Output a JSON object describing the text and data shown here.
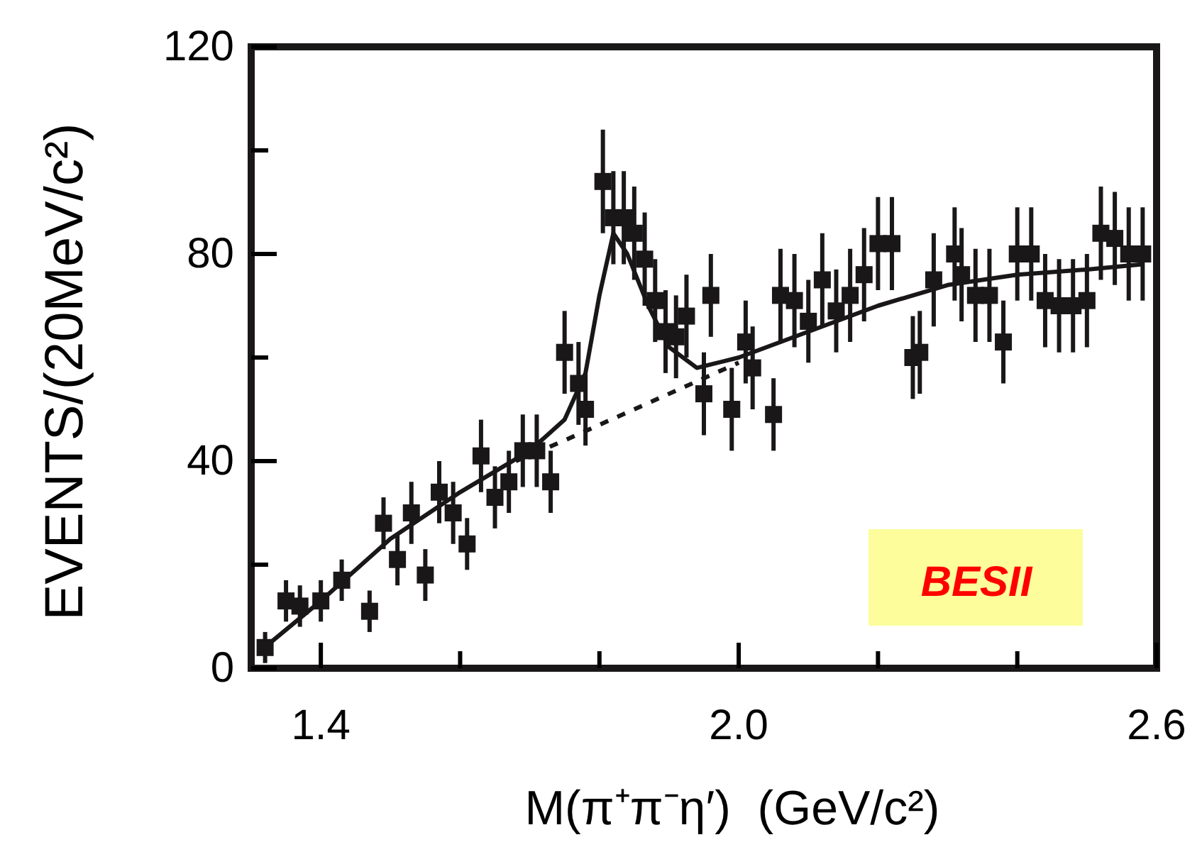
{
  "chart_data": {
    "type": "scatter",
    "xlabel": "M(π⁺π⁻η′)  (GeV/c²)",
    "ylabel": "EVENTS/(20MeV/c²)",
    "annotations": [
      "BESII"
    ],
    "xlim": [
      1.3,
      2.6
    ],
    "ylim": [
      0,
      120
    ],
    "xticks": [
      1.4,
      {
        "value": 1.6,
        "label": null
      },
      {
        "value": 1.8,
        "label": null
      },
      {
        "value": 2.0,
        "label": "2.0"
      },
      {
        "value": 2.2,
        "label": null
      },
      {
        "value": 2.4,
        "label": null
      },
      2.6
    ],
    "yticks": [
      0,
      {
        "value": 20,
        "label": null
      },
      40,
      {
        "value": 60,
        "label": null
      },
      80,
      {
        "value": 100,
        "label": null
      },
      120
    ],
    "grid": false,
    "series": [
      {
        "color": "#1a1718",
        "marker": "square",
        "x": [
          1.32,
          1.35,
          1.37,
          1.4,
          1.43,
          1.47,
          1.49,
          1.51,
          1.53,
          1.55,
          1.57,
          1.59,
          1.61,
          1.63,
          1.65,
          1.67,
          1.69,
          1.71,
          1.73,
          1.75,
          1.77,
          1.78,
          1.805,
          1.82,
          1.835,
          1.85,
          1.865,
          1.88,
          1.895,
          1.91,
          1.925,
          1.95,
          1.96,
          1.99,
          2.01,
          2.02,
          2.05,
          2.06,
          2.08,
          2.1,
          2.12,
          2.14,
          2.16,
          2.18,
          2.2,
          2.22,
          2.25,
          2.26,
          2.28,
          2.31,
          2.32,
          2.34,
          2.36,
          2.38,
          2.4,
          2.42,
          2.44,
          2.46,
          2.48,
          2.5,
          2.52,
          2.54,
          2.56,
          2.58
        ],
        "values": [
          4,
          13,
          12,
          13,
          17,
          11,
          28,
          21,
          30,
          18,
          34,
          30,
          24,
          41,
          33,
          36,
          42,
          42,
          36,
          61,
          55,
          50,
          94,
          87,
          87,
          84,
          79,
          71,
          65,
          64,
          68,
          53,
          72,
          50,
          63,
          58,
          49,
          72,
          71,
          67,
          75,
          69,
          72,
          76,
          82,
          82,
          60,
          61,
          75,
          80,
          76,
          72,
          72,
          63,
          80,
          80,
          71,
          70,
          70,
          71,
          84,
          83,
          80,
          80
        ],
        "errors": [
          3,
          4,
          4,
          4,
          4,
          4,
          5,
          5,
          6,
          5,
          6,
          6,
          5,
          7,
          6,
          6,
          7,
          7,
          6,
          8,
          8,
          7,
          10,
          9,
          9,
          9,
          9,
          8,
          8,
          8,
          8,
          8,
          8,
          8,
          8,
          8,
          7,
          9,
          9,
          8,
          9,
          8,
          9,
          9,
          9,
          9,
          8,
          8,
          9,
          9,
          9,
          9,
          9,
          8,
          9,
          9,
          9,
          9,
          9,
          9,
          9,
          9,
          9,
          9
        ]
      },
      {
        "type": "line",
        "color": "#1a1718",
        "line_style": "solid",
        "x": [
          1.31,
          1.4,
          1.5,
          1.6,
          1.7,
          1.75,
          1.78,
          1.8,
          1.82,
          1.84,
          1.87,
          1.9,
          1.94,
          2.0,
          2.1,
          2.2,
          2.3,
          2.4,
          2.5,
          2.58
        ],
        "values": [
          3,
          13,
          25,
          34,
          42,
          48,
          57,
          72,
          84,
          80,
          70,
          62,
          58,
          60,
          65,
          70,
          74,
          76,
          77,
          78
        ]
      },
      {
        "type": "line",
        "color": "#1a1718",
        "line_style": "dashed",
        "x": [
          1.68,
          1.75,
          1.85,
          1.95,
          2.0
        ],
        "values": [
          40,
          44,
          50,
          56,
          59
        ]
      }
    ]
  }
}
